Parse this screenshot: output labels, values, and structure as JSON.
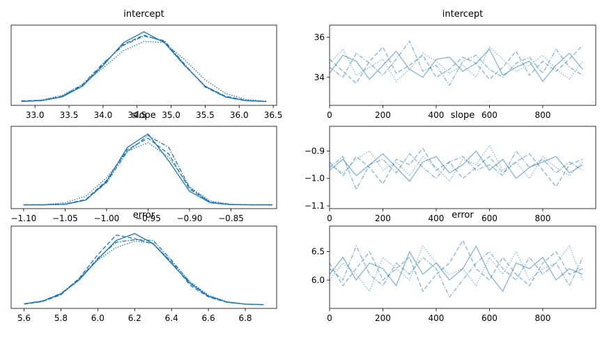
{
  "chart_data": [
    {
      "type": "line",
      "title": "intercept",
      "opacity": 1,
      "x": [
        32.8,
        33.1,
        33.4,
        33.7,
        34.0,
        34.3,
        34.6,
        34.9,
        35.2,
        35.5,
        35.8,
        36.1,
        36.4
      ],
      "xlim": [
        32.65,
        36.55
      ],
      "xticks": [
        {
          "value": 33.0,
          "label": "33.0"
        },
        {
          "value": 33.5,
          "label": "33.5"
        },
        {
          "value": 34.0,
          "label": "34.0"
        },
        {
          "value": 34.5,
          "label": "34.5"
        },
        {
          "value": 35.0,
          "label": "35.0"
        },
        {
          "value": 35.5,
          "label": "35.5"
        },
        {
          "value": 36.0,
          "label": "36.0"
        },
        {
          "value": 36.5,
          "label": "36.5"
        }
      ],
      "ylim": [
        -0.04,
        0.84
      ],
      "series": [
        {
          "color": "#1f77b4",
          "dash": "solid",
          "values": [
            0.002,
            0.012,
            0.053,
            0.171,
            0.396,
            0.648,
            0.767,
            0.648,
            0.396,
            0.171,
            0.053,
            0.012,
            0.002
          ]
        },
        {
          "color": "#1f77b4",
          "dash": "dashed",
          "values": [
            0.01,
            0.015,
            0.06,
            0.18,
            0.41,
            0.63,
            0.73,
            0.66,
            0.4,
            0.17,
            0.06,
            0.015,
            0.003
          ]
        },
        {
          "color": "#1f77b4",
          "dash": "dashdot",
          "values": [
            0.003,
            0.014,
            0.058,
            0.19,
            0.42,
            0.62,
            0.72,
            0.67,
            0.41,
            0.16,
            0.05,
            0.01,
            0.002
          ]
        },
        {
          "color": "#1f77b4",
          "dash": "dotted",
          "values": [
            0.004,
            0.02,
            0.07,
            0.19,
            0.37,
            0.56,
            0.66,
            0.65,
            0.46,
            0.24,
            0.09,
            0.025,
            0.005
          ]
        }
      ]
    },
    {
      "type": "line",
      "title": "intercept",
      "opacity": 0.55,
      "x": [
        0,
        50,
        100,
        150,
        200,
        250,
        300,
        350,
        400,
        450,
        500,
        550,
        600,
        650,
        700,
        750,
        800,
        850,
        900,
        950
      ],
      "xlim": [
        0,
        999
      ],
      "xticks": [
        0,
        200,
        400,
        600,
        800
      ],
      "ylim": [
        32.6,
        36.6
      ],
      "yticks": [
        34,
        36
      ],
      "series": [
        {
          "color": "#1f77b4",
          "dash": "solid",
          "values": [
            34.2,
            35.1,
            34.8,
            33.9,
            34.6,
            35.3,
            34.4,
            34.0,
            34.9,
            35.0,
            34.3,
            34.7,
            35.4,
            34.1,
            34.5,
            34.8,
            33.8,
            34.6,
            35.2,
            34.4
          ]
        },
        {
          "color": "#1f77b4",
          "dash": "dashed",
          "values": [
            34.9,
            34.3,
            33.7,
            34.8,
            35.5,
            34.2,
            34.6,
            35.1,
            34.0,
            34.4,
            35.0,
            34.7,
            33.9,
            34.5,
            35.3,
            34.1,
            34.8,
            34.3,
            34.9,
            35.6
          ]
        },
        {
          "color": "#1f77b4",
          "dash": "dashdot",
          "values": [
            34.5,
            34.0,
            35.2,
            34.7,
            34.1,
            34.9,
            35.8,
            34.3,
            34.6,
            33.6,
            34.8,
            35.1,
            34.4,
            34.0,
            34.7,
            35.0,
            34.2,
            35.4,
            34.5,
            34.1
          ]
        },
        {
          "color": "#1f77b4",
          "dash": "dotted",
          "values": [
            34.7,
            35.4,
            34.1,
            34.5,
            34.9,
            33.8,
            34.4,
            35.2,
            34.8,
            34.2,
            34.6,
            34.0,
            35.5,
            34.9,
            34.3,
            34.6,
            35.1,
            34.4,
            33.9,
            34.8
          ]
        }
      ]
    },
    {
      "type": "line",
      "title": "slope",
      "opacity": 1,
      "x": [
        -1.1,
        -1.075,
        -1.05,
        -1.025,
        -1.0,
        -0.975,
        -0.95,
        -0.925,
        -0.9,
        -0.875,
        -0.85,
        -0.825,
        -0.8
      ],
      "xlim": [
        -1.115,
        -0.795
      ],
      "xticks": [
        {
          "value": -1.1,
          "label": "−1.10"
        },
        {
          "value": -1.05,
          "label": "−1.05"
        },
        {
          "value": -1.0,
          "label": "−1.00"
        },
        {
          "value": -0.95,
          "label": "−0.95"
        },
        {
          "value": -0.9,
          "label": "−0.90"
        },
        {
          "value": -0.85,
          "label": "−0.85"
        }
      ],
      "ylim": [
        -0.7,
        14.5
      ],
      "series": [
        {
          "color": "#1f77b4",
          "dash": "solid",
          "values": [
            0,
            0.002,
            0.09,
            0.88,
            4.3,
            10.6,
            13.1,
            8.1,
            2.5,
            0.38,
            0.03,
            0,
            0
          ]
        },
        {
          "color": "#1f77b4",
          "dash": "dashed",
          "values": [
            0,
            0.01,
            0.15,
            1.0,
            4.5,
            10.2,
            12.3,
            9.4,
            2.9,
            0.5,
            0.06,
            0.01,
            0
          ]
        },
        {
          "color": "#1f77b4",
          "dash": "dashdot",
          "values": [
            0,
            0.005,
            0.12,
            0.9,
            4.1,
            9.8,
            12.8,
            10.6,
            3.2,
            0.45,
            0.04,
            0,
            0
          ]
        },
        {
          "color": "#1f77b4",
          "dash": "dotted",
          "values": [
            0.01,
            0.05,
            0.4,
            1.6,
            5.0,
            9.9,
            11.5,
            8.8,
            3.3,
            0.7,
            0.1,
            0.02,
            0
          ]
        }
      ]
    },
    {
      "type": "line",
      "title": "slope",
      "opacity": 0.55,
      "x": [
        0,
        50,
        100,
        150,
        200,
        250,
        300,
        350,
        400,
        450,
        500,
        550,
        600,
        650,
        700,
        750,
        800,
        850,
        900,
        950
      ],
      "xlim": [
        0,
        999
      ],
      "xticks": [
        0,
        200,
        400,
        600,
        800
      ],
      "ylim": [
        -1.11,
        -0.81
      ],
      "yticks": [
        {
          "value": -1.1,
          "label": "−1.1"
        },
        {
          "value": -1.0,
          "label": "−1.0"
        },
        {
          "value": -0.9,
          "label": "−0.9"
        }
      ],
      "series": [
        {
          "color": "#1f77b4",
          "dash": "solid",
          "values": [
            -0.97,
            -0.93,
            -0.99,
            -0.95,
            -0.91,
            -0.96,
            -1.01,
            -0.94,
            -0.92,
            -0.98,
            -0.95,
            -0.9,
            -0.97,
            -0.93,
            -1.0,
            -0.96,
            -0.94,
            -0.92,
            -0.98,
            -0.95
          ]
        },
        {
          "color": "#1f77b4",
          "dash": "dashed",
          "values": [
            -0.94,
            -0.99,
            -0.92,
            -0.96,
            -1.02,
            -0.93,
            -0.95,
            -0.89,
            -0.97,
            -0.94,
            -1.0,
            -0.96,
            -0.92,
            -0.98,
            -0.94,
            -0.91,
            -0.97,
            -1.03,
            -0.95,
            -0.93
          ]
        },
        {
          "color": "#1f77b4",
          "dash": "dashdot",
          "values": [
            -0.96,
            -0.92,
            -1.04,
            -0.95,
            -0.93,
            -0.98,
            -0.91,
            -0.96,
            -1.0,
            -0.94,
            -0.92,
            -0.97,
            -0.95,
            -0.99,
            -0.9,
            -0.96,
            -0.93,
            -0.98,
            -0.94,
            -0.97
          ]
        },
        {
          "color": "#1f77b4",
          "dash": "dotted",
          "values": [
            -0.95,
            -0.98,
            -0.93,
            -0.9,
            -0.97,
            -0.94,
            -0.99,
            -0.92,
            -0.96,
            -1.01,
            -0.93,
            -0.95,
            -0.88,
            -0.97,
            -0.94,
            -1.0,
            -0.92,
            -0.96,
            -0.99,
            -0.94
          ]
        }
      ]
    },
    {
      "type": "line",
      "title": "error",
      "opacity": 1,
      "x": [
        5.6,
        5.7,
        5.8,
        5.9,
        6.0,
        6.1,
        6.2,
        6.3,
        6.4,
        6.5,
        6.6,
        6.7,
        6.8,
        6.9
      ],
      "xlim": [
        5.53,
        6.97
      ],
      "xticks": [
        {
          "value": 5.6,
          "label": "5.6"
        },
        {
          "value": 5.8,
          "label": "5.8"
        },
        {
          "value": 6.0,
          "label": "6.0"
        },
        {
          "value": 6.2,
          "label": "6.2"
        },
        {
          "value": 6.4,
          "label": "6.4"
        },
        {
          "value": 6.6,
          "label": "6.6"
        },
        {
          "value": 6.8,
          "label": "6.8"
        }
      ],
      "ylim": [
        -0.1,
        2.2
      ],
      "series": [
        {
          "color": "#1f77b4",
          "dash": "solid",
          "values": [
            0.026,
            0.1,
            0.3,
            0.7,
            1.27,
            1.8,
            1.99,
            1.71,
            1.15,
            0.6,
            0.24,
            0.077,
            0.019,
            0.004
          ]
        },
        {
          "color": "#1f77b4",
          "dash": "dashed",
          "values": [
            0.02,
            0.09,
            0.28,
            0.75,
            1.4,
            1.95,
            1.85,
            1.7,
            1.2,
            0.55,
            0.22,
            0.07,
            0.02,
            0.005
          ]
        },
        {
          "color": "#1f77b4",
          "dash": "dashdot",
          "values": [
            0.03,
            0.11,
            0.32,
            0.72,
            1.3,
            1.75,
            1.82,
            1.8,
            1.25,
            0.62,
            0.25,
            0.08,
            0.02,
            0.005
          ]
        },
        {
          "color": "#1f77b4",
          "dash": "dotted",
          "values": [
            0.025,
            0.1,
            0.31,
            0.74,
            1.25,
            1.6,
            1.78,
            1.72,
            1.2,
            0.65,
            0.27,
            0.09,
            0.02,
            0.004
          ]
        }
      ]
    },
    {
      "type": "line",
      "title": "error",
      "opacity": 0.55,
      "x": [
        0,
        50,
        100,
        150,
        200,
        250,
        300,
        350,
        400,
        450,
        500,
        550,
        600,
        650,
        700,
        750,
        800,
        850,
        900,
        950
      ],
      "xlim": [
        0,
        999
      ],
      "xticks": [
        0,
        200,
        400,
        600,
        800
      ],
      "ylim": [
        5.5,
        6.95
      ],
      "yticks": [
        {
          "value": 6.0,
          "label": "6.0"
        },
        {
          "value": 6.5,
          "label": "6.5"
        }
      ],
      "series": [
        {
          "color": "#1f77b4",
          "dash": "solid",
          "values": [
            6.1,
            6.4,
            6.0,
            6.3,
            6.2,
            5.9,
            6.5,
            6.1,
            6.3,
            6.0,
            6.2,
            6.6,
            6.1,
            5.8,
            6.3,
            6.2,
            6.4,
            6.0,
            6.2,
            6.1
          ]
        },
        {
          "color": "#1f77b4",
          "dash": "dashed",
          "values": [
            6.3,
            5.9,
            6.2,
            6.5,
            6.0,
            6.2,
            6.4,
            5.8,
            6.1,
            6.3,
            6.7,
            6.2,
            6.0,
            6.4,
            6.1,
            5.9,
            6.3,
            6.5,
            6.1,
            6.2
          ]
        },
        {
          "color": "#1f77b4",
          "dash": "dashdot",
          "values": [
            6.2,
            6.0,
            6.6,
            6.1,
            5.9,
            6.3,
            6.1,
            6.4,
            6.2,
            5.7,
            6.0,
            6.3,
            6.5,
            6.2,
            6.0,
            6.4,
            6.1,
            6.3,
            5.9,
            6.4
          ]
        },
        {
          "color": "#1f77b4",
          "dash": "dotted",
          "values": [
            6.0,
            6.3,
            6.1,
            5.8,
            6.4,
            6.2,
            6.0,
            6.6,
            6.3,
            6.1,
            6.2,
            5.9,
            6.4,
            6.1,
            6.5,
            6.0,
            6.2,
            6.3,
            6.6,
            6.0
          ]
        }
      ]
    }
  ]
}
